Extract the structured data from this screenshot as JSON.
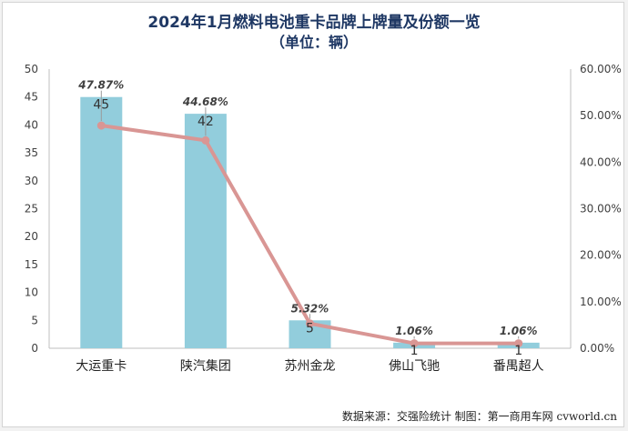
{
  "title_line1": "2024年1月燃料电池重卡品牌上牌量及份额一览",
  "title_line2": "（单位：辆）",
  "source": "数据来源：交强险统计 制图：第一商用车网 cvworld.cn",
  "colors": {
    "bar": "#92cddc",
    "line": "#d99694",
    "text": "#404040",
    "title": "#1f3864"
  },
  "chart_data": {
    "type": "bar",
    "categories": [
      "大运重卡",
      "陕汽集团",
      "苏州金龙",
      "佛山飞驰",
      "番禺超人"
    ],
    "series": [
      {
        "type": "bar",
        "axis": "left",
        "values": [
          45,
          42,
          5,
          1,
          1
        ],
        "labels": [
          "45",
          "42",
          "5",
          "1",
          "1"
        ]
      },
      {
        "type": "line",
        "axis": "right",
        "values": [
          47.87,
          44.68,
          5.32,
          1.06,
          1.06
        ],
        "labels": [
          "47.87%",
          "44.68%",
          "5.32%",
          "1.06%",
          "1.06%"
        ]
      }
    ],
    "ylim_left": [
      0,
      50
    ],
    "yticks_left": [
      "0",
      "5",
      "10",
      "15",
      "20",
      "25",
      "30",
      "35",
      "40",
      "45",
      "50"
    ],
    "ylim_right": [
      0,
      60
    ],
    "yticks_right": [
      "0.00%",
      "10.00%",
      "20.00%",
      "30.00%",
      "40.00%",
      "50.00%",
      "60.00%"
    ],
    "grid": false,
    "legend": "none"
  }
}
